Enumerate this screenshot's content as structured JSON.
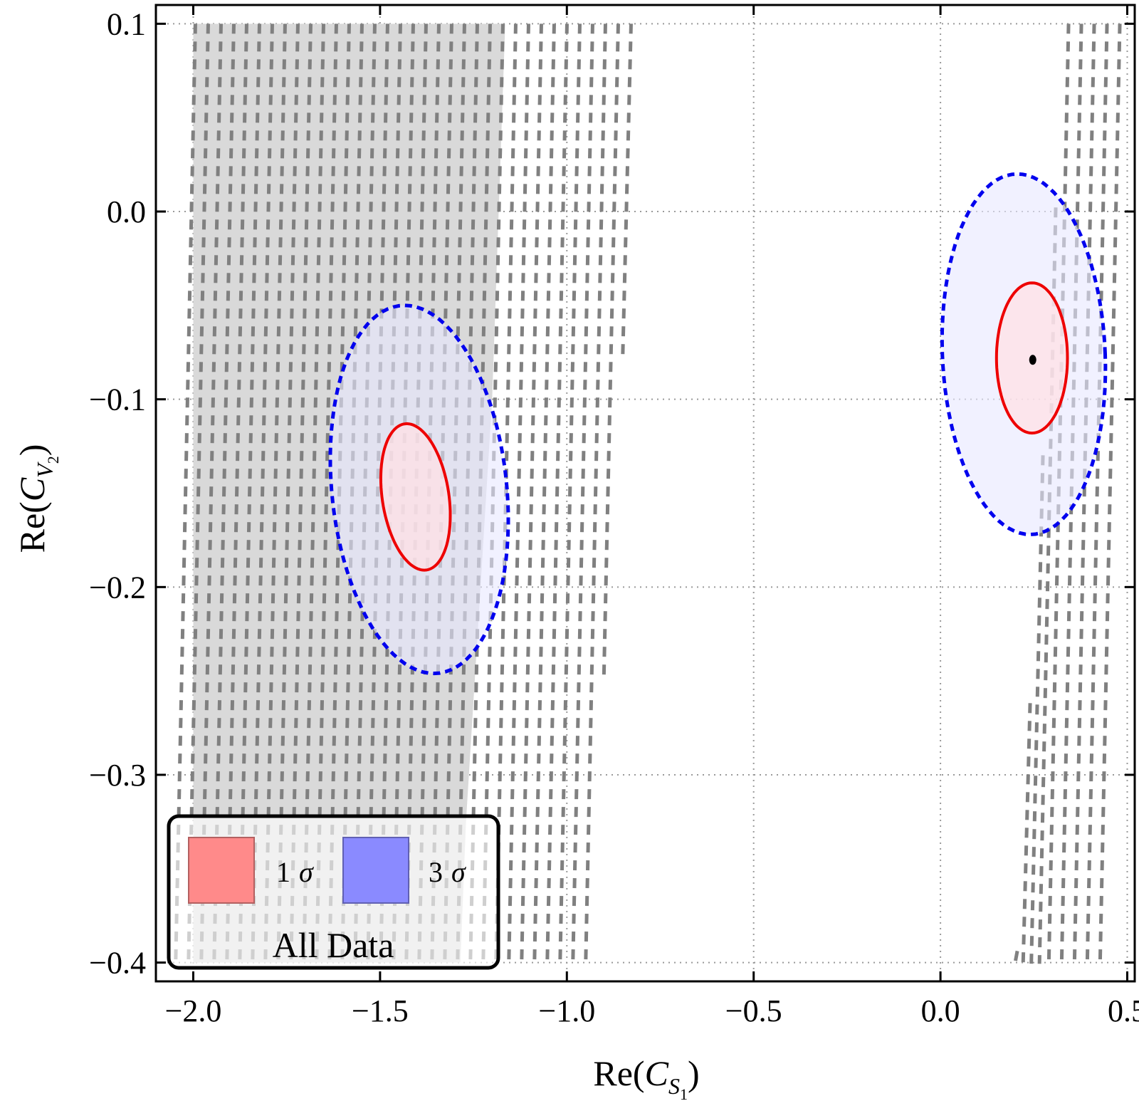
{
  "chart_data": {
    "type": "scatter",
    "title": "",
    "xlabel": {
      "prefix": "Re(",
      "var": "C",
      "sub": "S",
      "subsub": "1",
      "suffix": ")"
    },
    "ylabel": {
      "prefix": "Re(",
      "var": "C",
      "sub": "V",
      "subsub": "2",
      "suffix": ")"
    },
    "xlim": [
      -2.1,
      0.52
    ],
    "ylim": [
      -0.41,
      0.11
    ],
    "x_ticks": [
      -2.0,
      -1.5,
      -1.0,
      -0.5,
      0.0,
      0.5
    ],
    "x_tick_labels": [
      "−2.0",
      "−1.5",
      "−1.0",
      "−0.5",
      "0.0",
      "0.5"
    ],
    "y_ticks": [
      0.1,
      0.0,
      -0.1,
      -0.2,
      -0.3,
      -0.4
    ],
    "y_tick_labels": [
      "0.1",
      "0.0",
      "−0.1",
      "−0.2",
      "−0.3",
      "−0.4"
    ],
    "grid": true,
    "excluded_region": {
      "color": "#d9d9d9",
      "polygon": [
        [
          -2.0,
          0.1
        ],
        [
          -1.165,
          0.1
        ],
        [
          -1.2,
          -0.1
        ],
        [
          -1.27,
          -0.325
        ],
        [
          -1.285,
          -0.4
        ],
        [
          -2.0,
          -0.4
        ]
      ]
    },
    "hatched_bands": [
      {
        "name": "left-band",
        "x_left": -2.0,
        "x_right_top": -0.8,
        "x_right_bottom": -0.9,
        "y_top": 0.1,
        "y_bottom": -0.4,
        "color": "#808080"
      },
      {
        "name": "right-band",
        "x_left_top": 0.33,
        "x_left_bottom": 0.2,
        "x_right_top": 0.505,
        "x_right_bottom": 0.49,
        "y_top": 0.1,
        "y_bottom": -0.4,
        "color": "#808080"
      }
    ],
    "contours": [
      {
        "name": "left-3sigma",
        "level": "3 sigma",
        "cx": -1.395,
        "cy": -0.148,
        "rx": 0.235,
        "ry": 0.098,
        "tilt_x_per_y": -0.4,
        "fill": "#e8e8ff",
        "stroke": "#0000ee",
        "dashed": true
      },
      {
        "name": "left-1sigma",
        "level": "1 sigma",
        "cx": -1.405,
        "cy": -0.152,
        "rx": 0.09,
        "ry": 0.039,
        "tilt_x_per_y": -0.6,
        "fill": "#ffe0e6",
        "stroke": "#ee0000",
        "dashed": false
      },
      {
        "name": "right-3sigma",
        "level": "3 sigma",
        "cx": 0.223,
        "cy": -0.076,
        "rx": 0.218,
        "ry": 0.096,
        "tilt_x_per_y": -0.18,
        "fill": "#e8e8ff",
        "stroke": "#0000ee",
        "dashed": true
      },
      {
        "name": "right-1sigma",
        "level": "1 sigma",
        "cx": 0.245,
        "cy": -0.078,
        "rx": 0.095,
        "ry": 0.04,
        "tilt_x_per_y": 0.0,
        "fill": "#ffe0e6",
        "stroke": "#ee0000",
        "dashed": false
      }
    ],
    "best_fit_point": {
      "x": 0.247,
      "y": -0.079
    },
    "legend": {
      "placement": "bottom-left",
      "title": "All Data",
      "entries": [
        {
          "num": "1",
          "sym": "σ",
          "color": "#ff8a8a"
        },
        {
          "num": "3",
          "sym": "σ",
          "color": "#8a8aff"
        }
      ]
    }
  }
}
